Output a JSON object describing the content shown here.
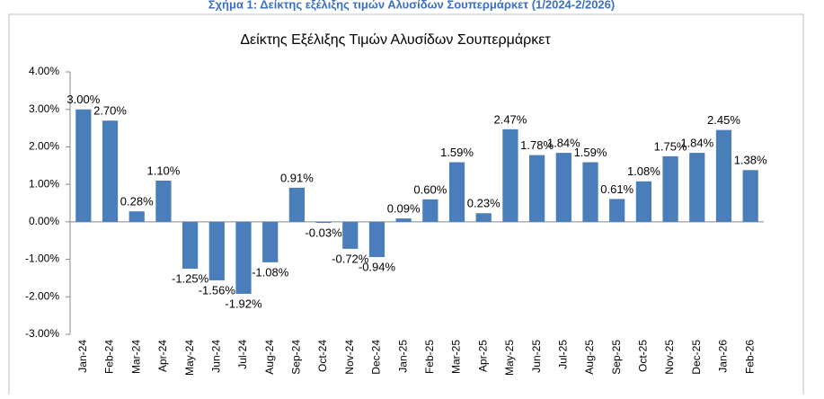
{
  "caption": "Σχήμα 1: Δείκτης εξέλιξης τιμών Αλυσίδων Σουπερμάρκετ (1/2024-2/2026)",
  "chart_data": {
    "type": "bar",
    "title": "Δείκτης Εξέλιξης Τιμών Αλυσίδων Σουπερμάρκετ",
    "categories": [
      "Jan-24",
      "Feb-24",
      "Mar-24",
      "Apr-24",
      "May-24",
      "Jun-24",
      "Jul-24",
      "Aug-24",
      "Sep-24",
      "Oct-24",
      "Nov-24",
      "Dec-24",
      "Jan-25",
      "Feb-25",
      "Mar-25",
      "Apr-25",
      "May-25",
      "Jun-25",
      "Jul-25",
      "Aug-25",
      "Sep-25",
      "Oct-25",
      "Nov-25",
      "Dec-25",
      "Jan-26",
      "Feb-26"
    ],
    "values": [
      3.0,
      2.7,
      0.28,
      1.1,
      -1.25,
      -1.56,
      -1.92,
      -1.08,
      0.91,
      -0.03,
      -0.72,
      -0.94,
      0.09,
      0.6,
      1.59,
      0.23,
      2.47,
      1.78,
      1.84,
      1.59,
      0.61,
      1.08,
      1.75,
      1.84,
      2.45,
      1.38
    ],
    "value_labels": [
      "3.00%",
      "2.70%",
      "0.28%",
      "1.10%",
      "-1.25%",
      "-1.56%",
      "-1.92%",
      "-1.08%",
      "0.91%",
      "-0.03%",
      "-0.72%",
      "-0.94%",
      "0.09%",
      "0.60%",
      "1.59%",
      "0.23%",
      "2.47%",
      "1.78%",
      "1.84%",
      "1.59%",
      "0.61%",
      "1.08%",
      "1.75%",
      "1.84%",
      "2.45%",
      "1.38%"
    ],
    "color": "#4a7ebb",
    "ylim": [
      -3,
      4
    ],
    "yticks": [
      {
        "value": -3,
        "label": "-3.00%"
      },
      {
        "value": -2,
        "label": "-2.00%"
      },
      {
        "value": -1,
        "label": "-1.00%"
      },
      {
        "value": 0,
        "label": "0.00%"
      },
      {
        "value": 1,
        "label": "1.00%"
      },
      {
        "value": 2,
        "label": "2.00%"
      },
      {
        "value": 3,
        "label": "3.00%"
      },
      {
        "value": 4,
        "label": "4.00%"
      }
    ],
    "grid": false
  }
}
